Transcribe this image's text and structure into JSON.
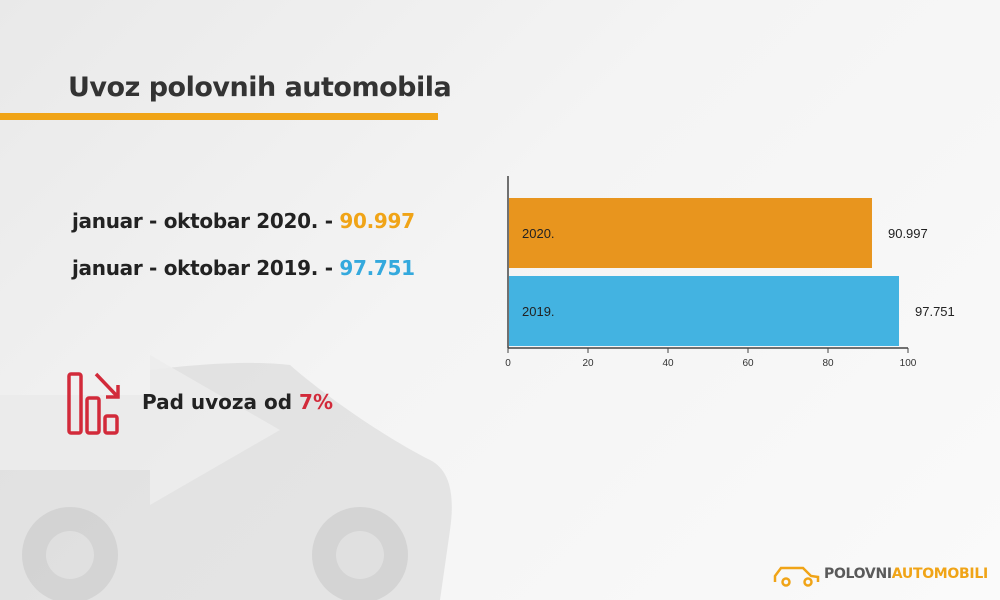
{
  "title": "Uvoz polovnih automobila",
  "stats": [
    {
      "label": "januar - oktobar 2020. - ",
      "value": "90.997"
    },
    {
      "label": "januar - oktobar 2019. - ",
      "value": "97.751"
    }
  ],
  "decline": {
    "label": "Pad uvoza od ",
    "value": "7%"
  },
  "brand": {
    "part1": "POLOVNI",
    "part2": "AUTOMOBILI"
  },
  "colors": {
    "accent": "#f0a417",
    "series_2020": "#e8951e",
    "series_2019": "#43b3e1",
    "decline": "#d22a3a"
  },
  "icons": {
    "decline": "bar-chart-decline-icon",
    "brand": "car-outline-icon"
  },
  "chart_data": {
    "type": "bar",
    "orientation": "horizontal",
    "categories": [
      "2020.",
      "2019."
    ],
    "values": [
      90.997,
      97.751
    ],
    "value_labels": [
      "90.997",
      "97.751"
    ],
    "xlim": [
      0,
      100
    ],
    "xticks": [
      "0",
      "20",
      "40",
      "60",
      "80",
      "100"
    ],
    "grid": false
  }
}
